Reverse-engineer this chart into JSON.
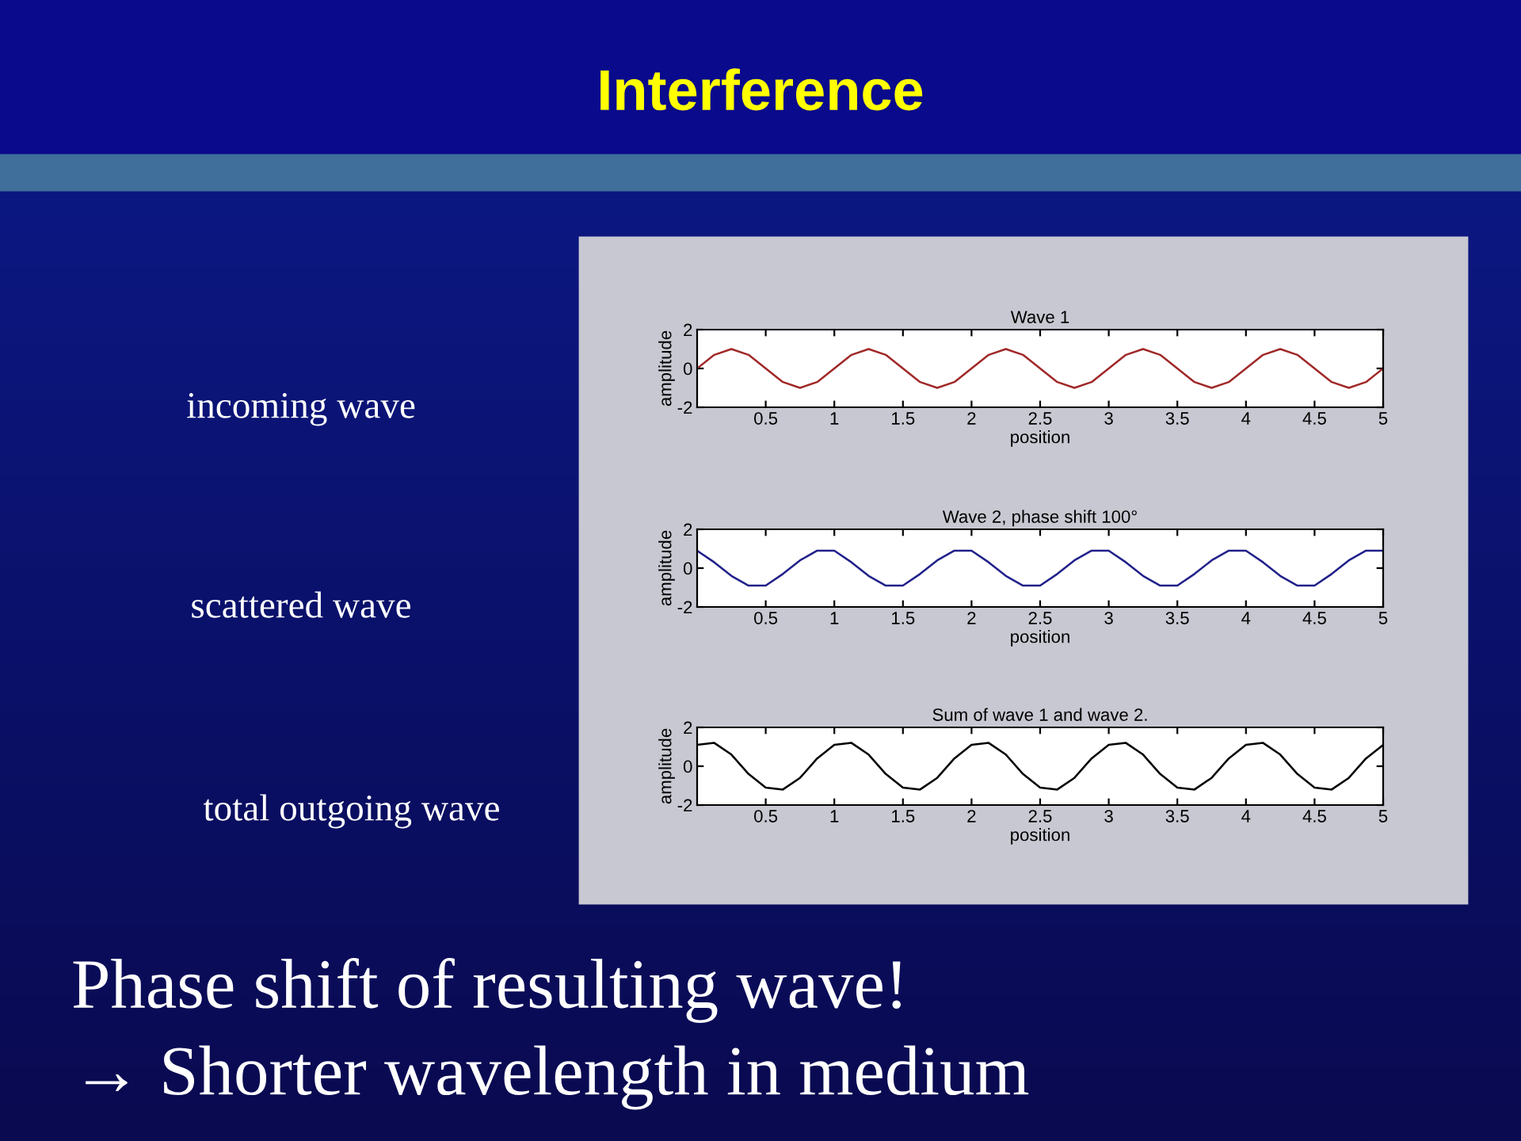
{
  "chart_data": [
    {
      "type": "line",
      "title": "Wave 1",
      "xlabel": "position",
      "ylabel": "amplitude",
      "color": "#a02828",
      "annotations": [
        "incoming wave"
      ],
      "x": [
        0,
        0.125,
        0.25,
        0.375,
        0.5,
        0.625,
        0.75,
        0.875,
        1,
        1.125,
        1.25,
        1.375,
        1.5,
        1.625,
        1.75,
        1.875,
        2,
        2.125,
        2.25,
        2.375,
        2.5,
        2.625,
        2.75,
        2.875,
        3,
        3.125,
        3.25,
        3.375,
        3.5,
        3.625,
        3.75,
        3.875,
        4,
        4.125,
        4.25,
        4.375,
        4.5,
        4.625,
        4.75,
        4.875,
        5
      ],
      "values": [
        0,
        0.7,
        1,
        0.7,
        0,
        -0.7,
        -1,
        -0.7,
        0,
        0.7,
        1,
        0.7,
        0,
        -0.7,
        -1,
        -0.7,
        0,
        0.7,
        1,
        0.7,
        0,
        -0.7,
        -1,
        -0.7,
        0,
        0.7,
        1,
        0.7,
        0,
        -0.7,
        -1,
        -0.7,
        0,
        0.7,
        1,
        0.7,
        0,
        -0.7,
        -1,
        -0.7,
        0
      ],
      "xlim": [
        0,
        5
      ],
      "ylim": [
        -2,
        2
      ],
      "xticks": [
        0.5,
        1,
        1.5,
        2,
        2.5,
        3,
        3.5,
        4,
        4.5,
        5
      ],
      "yticks": [
        -2,
        0,
        2
      ]
    },
    {
      "type": "line",
      "title": "Wave 2, phase shift 100°",
      "xlabel": "position",
      "ylabel": "amplitude",
      "color": "#20208a",
      "annotations": [
        "scattered wave"
      ],
      "x": [
        0,
        0.125,
        0.25,
        0.375,
        0.5,
        0.625,
        0.75,
        0.875,
        1,
        1.125,
        1.25,
        1.375,
        1.5,
        1.625,
        1.75,
        1.875,
        2,
        2.125,
        2.25,
        2.375,
        2.5,
        2.625,
        2.75,
        2.875,
        3,
        3.125,
        3.25,
        3.375,
        3.5,
        3.625,
        3.75,
        3.875,
        4,
        4.125,
        4.25,
        4.375,
        4.5,
        4.625,
        4.75,
        4.875,
        5
      ],
      "values": [
        0.9,
        0.3,
        -0.4,
        -0.9,
        -0.9,
        -0.3,
        0.4,
        0.9,
        0.9,
        0.3,
        -0.4,
        -0.9,
        -0.9,
        -0.3,
        0.4,
        0.9,
        0.9,
        0.3,
        -0.4,
        -0.9,
        -0.9,
        -0.3,
        0.4,
        0.9,
        0.9,
        0.3,
        -0.4,
        -0.9,
        -0.9,
        -0.3,
        0.4,
        0.9,
        0.9,
        0.3,
        -0.4,
        -0.9,
        -0.9,
        -0.3,
        0.4,
        0.9,
        0.9
      ],
      "xlim": [
        0,
        5
      ],
      "ylim": [
        -2,
        2
      ],
      "xticks": [
        0.5,
        1,
        1.5,
        2,
        2.5,
        3,
        3.5,
        4,
        4.5,
        5
      ],
      "yticks": [
        -2,
        0,
        2
      ]
    },
    {
      "type": "line",
      "title": "Sum of wave 1 and wave 2.",
      "xlabel": "position",
      "ylabel": "amplitude",
      "color": "#000000",
      "annotations": [
        "total outgoing wave"
      ],
      "x": [
        0,
        0.125,
        0.25,
        0.375,
        0.5,
        0.625,
        0.75,
        0.875,
        1,
        1.125,
        1.25,
        1.375,
        1.5,
        1.625,
        1.75,
        1.875,
        2,
        2.125,
        2.25,
        2.375,
        2.5,
        2.625,
        2.75,
        2.875,
        3,
        3.125,
        3.25,
        3.375,
        3.5,
        3.625,
        3.75,
        3.875,
        4,
        4.125,
        4.25,
        4.375,
        4.5,
        4.625,
        4.75,
        4.875,
        5
      ],
      "values": [
        1.1,
        1.2,
        0.6,
        -0.4,
        -1.1,
        -1.2,
        -0.6,
        0.4,
        1.1,
        1.2,
        0.6,
        -0.4,
        -1.1,
        -1.2,
        -0.6,
        0.4,
        1.1,
        1.2,
        0.6,
        -0.4,
        -1.1,
        -1.2,
        -0.6,
        0.4,
        1.1,
        1.2,
        0.6,
        -0.4,
        -1.1,
        -1.2,
        -0.6,
        0.4,
        1.1,
        1.2,
        0.6,
        -0.4,
        -1.1,
        -1.2,
        -0.6,
        0.4,
        1.1
      ],
      "xlim": [
        0,
        5
      ],
      "ylim": [
        -2,
        2
      ],
      "xticks": [
        0.5,
        1,
        1.5,
        2,
        2.5,
        3,
        3.5,
        4,
        4.5,
        5
      ],
      "yticks": [
        -2,
        0,
        2
      ]
    },
    {
      "type": "other",
      "title": "Interference",
      "annotations": [
        "Phase shift of resulting wave!",
        "→ Shorter wavelength in medium"
      ]
    }
  ]
}
